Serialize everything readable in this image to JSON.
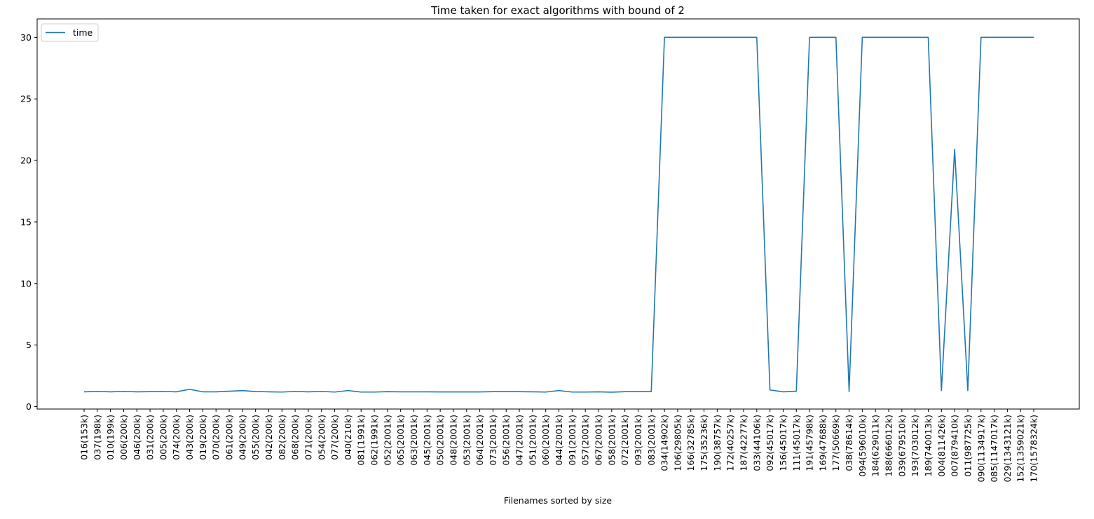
{
  "chart_data": {
    "type": "line",
    "title": "Time taken for exact algorithms with bound of 2",
    "xlabel": "Filenames sorted by size",
    "ylabel": "",
    "ylim": [
      -0.2,
      31.5
    ],
    "yticks": [
      0,
      5,
      10,
      15,
      20,
      25,
      30
    ],
    "grid": false,
    "legend_position": "top-left",
    "line_color": "#1f77b4",
    "categories": [
      "016(153k)",
      "037(198k)",
      "010(199k)",
      "006(200k)",
      "046(200k)",
      "031(200k)",
      "005(200k)",
      "074(200k)",
      "043(200k)",
      "019(200k)",
      "070(200k)",
      "061(200k)",
      "049(200k)",
      "055(200k)",
      "042(200k)",
      "082(200k)",
      "068(200k)",
      "071(200k)",
      "054(200k)",
      "077(200k)",
      "040(210k)",
      "081(1991k)",
      "062(1991k)",
      "052(2001k)",
      "065(2001k)",
      "063(2001k)",
      "045(2001k)",
      "050(2001k)",
      "048(2001k)",
      "053(2001k)",
      "064(2001k)",
      "073(2001k)",
      "056(2001k)",
      "047(2001k)",
      "051(2001k)",
      "060(2001k)",
      "044(2001k)",
      "091(2001k)",
      "057(2001k)",
      "067(2001k)",
      "058(2001k)",
      "072(2001k)",
      "093(2001k)",
      "083(2001k)",
      "034(14902k)",
      "106(29805k)",
      "166(32785k)",
      "175(35236k)",
      "190(38757k)",
      "172(40257k)",
      "187(42277k)",
      "033(44106k)",
      "092(45017k)",
      "156(45017k)",
      "111(45017k)",
      "191(45798k)",
      "169(47688k)",
      "177(50669k)",
      "038(78614k)",
      "094(596010k)",
      "184(629011k)",
      "188(666012k)",
      "039(679510k)",
      "193(703012k)",
      "189(740013k)",
      "004(811426k)",
      "007(879410k)",
      "011(987725k)",
      "090(1134917k)",
      "085(1147017k)",
      "029(1343121k)",
      "152(1359021k)",
      "170(1578324k)"
    ],
    "series": [
      {
        "name": "time",
        "values": [
          1.2,
          1.23,
          1.2,
          1.23,
          1.2,
          1.21,
          1.23,
          1.2,
          1.4,
          1.2,
          1.2,
          1.25,
          1.3,
          1.22,
          1.2,
          1.18,
          1.23,
          1.2,
          1.23,
          1.18,
          1.3,
          1.18,
          1.18,
          1.21,
          1.2,
          1.2,
          1.2,
          1.19,
          1.19,
          1.19,
          1.19,
          1.21,
          1.21,
          1.21,
          1.2,
          1.18,
          1.3,
          1.18,
          1.18,
          1.2,
          1.17,
          1.21,
          1.21,
          1.21,
          30,
          30,
          30,
          30,
          30,
          30,
          30,
          30,
          1.35,
          1.2,
          1.25,
          30,
          30,
          30,
          1.22,
          30,
          30,
          30,
          30,
          30,
          30,
          1.3,
          20.9,
          1.3,
          30,
          30,
          30,
          30,
          30
        ]
      }
    ]
  }
}
